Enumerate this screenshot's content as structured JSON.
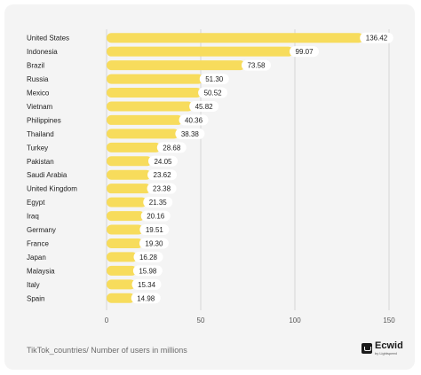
{
  "chart_data": {
    "type": "bar",
    "orientation": "horizontal",
    "categories": [
      "United States",
      "Indonesia",
      "Brazil",
      "Russia",
      "Mexico",
      "Vietnam",
      "Philippines",
      "Thailand",
      "Turkey",
      "Pakistan",
      "Saudi Arabia",
      "United Kingdom",
      "Egypt",
      "Iraq",
      "Germany",
      "France",
      "Japan",
      "Malaysia",
      "Italy",
      "Spain"
    ],
    "values": [
      136.42,
      99.07,
      73.58,
      51.3,
      50.52,
      45.82,
      40.36,
      38.38,
      28.68,
      24.05,
      23.62,
      23.38,
      21.35,
      20.16,
      19.51,
      19.3,
      16.28,
      15.98,
      15.34,
      14.98
    ],
    "value_labels": [
      "136.42",
      "99.07",
      "73.58",
      "51.30",
      "50.52",
      "45.82",
      "40.36",
      "38.38",
      "28.68",
      "24.05",
      "23.62",
      "23.38",
      "21.35",
      "20.16",
      "19.51",
      "19.30",
      "16.28",
      "15.98",
      "15.34",
      "14.98"
    ],
    "x_ticks": [
      "0",
      "50",
      "100",
      "150"
    ],
    "x_tick_values": [
      0,
      50,
      100,
      150
    ],
    "xlim": [
      0,
      150
    ],
    "grid": "vertical",
    "bar_color": "#f7dc5c",
    "label_bg_color": "#ffffff"
  },
  "caption": "TikTok_countries/ Number of users in millions",
  "logo": {
    "name": "Ecwid",
    "sub": "by Lightspeed",
    "icon": "cart-icon"
  }
}
